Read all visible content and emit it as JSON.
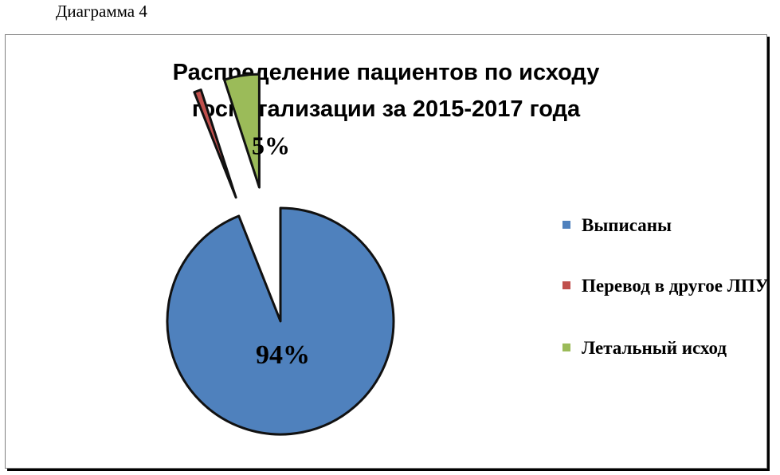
{
  "caption": "Диаграмма 4",
  "chart_data": {
    "type": "pie",
    "title_lines": [
      "Распределение пациентов по исходу",
      "госпитализации за 2015-2017 года"
    ],
    "slices": [
      {
        "name": "Выписаны",
        "value": 94,
        "label": "94%",
        "color": "#4f81bd"
      },
      {
        "name": "Перевод в другое ЛПУ",
        "value": 1,
        "label": "",
        "color": "#c0504d"
      },
      {
        "name": "Летальный исход",
        "value": 5,
        "label": "5%",
        "color": "#9bbb59"
      }
    ],
    "legend_position": "right"
  }
}
